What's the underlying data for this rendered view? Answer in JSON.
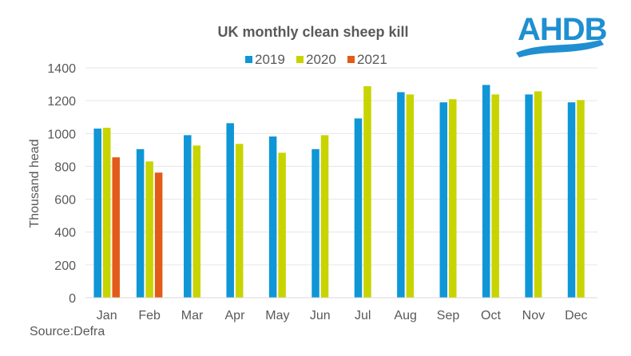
{
  "chart_data": {
    "type": "bar",
    "title": "UK monthly clean sheep kill",
    "xlabel": "",
    "ylabel": "Thousand head",
    "ylim": [
      0,
      1400
    ],
    "yticks": [
      0,
      200,
      400,
      600,
      800,
      1000,
      1200,
      1400
    ],
    "grid": true,
    "legend_position": "top-center",
    "categories": [
      "Jan",
      "Feb",
      "Mar",
      "Apr",
      "May",
      "Jun",
      "Jul",
      "Aug",
      "Sep",
      "Oct",
      "Nov",
      "Dec"
    ],
    "series": [
      {
        "name": "2019",
        "color": "#0f96d6",
        "values": [
          1030,
          905,
          990,
          1063,
          982,
          905,
          1092,
          1252,
          1190,
          1296,
          1238,
          1190
        ]
      },
      {
        "name": "2020",
        "color": "#c8d400",
        "values": [
          1035,
          830,
          927,
          937,
          883,
          990,
          1288,
          1238,
          1209,
          1238,
          1257,
          1204
        ]
      },
      {
        "name": "2021",
        "color": "#e35b19",
        "values": [
          855,
          762,
          null,
          null,
          null,
          null,
          null,
          null,
          null,
          null,
          null,
          null
        ]
      }
    ],
    "source": "Source:Defra"
  },
  "logo": {
    "text": "AHDB",
    "color": "#1f8fd1"
  }
}
